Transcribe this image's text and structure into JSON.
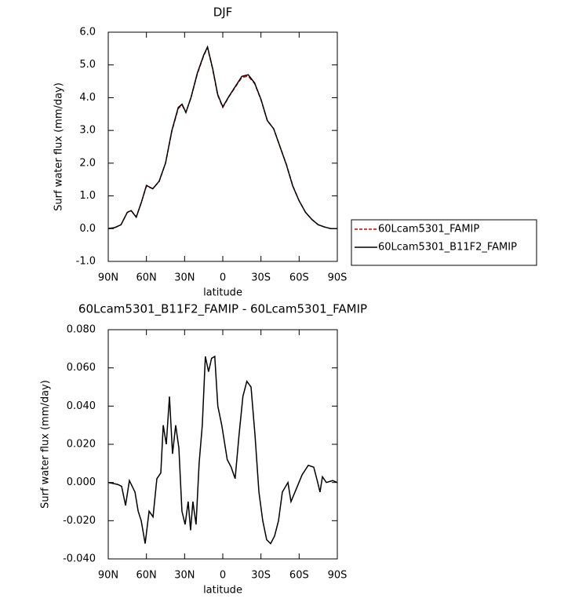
{
  "chart_data": [
    {
      "type": "line",
      "title": "DJF",
      "x_label": "latitude",
      "y_label": "Surf water flux (mm/day)",
      "x": [
        90,
        85,
        80,
        75,
        72,
        68,
        64,
        60,
        55,
        50,
        45,
        40,
        35,
        32,
        29,
        25,
        20,
        15,
        12,
        8,
        4,
        0,
        -5,
        -10,
        -15,
        -20,
        -25,
        -30,
        -35,
        -40,
        -45,
        -50,
        -55,
        -60,
        -65,
        -70,
        -75,
        -80,
        -85,
        -90
      ],
      "series": [
        {
          "name": "60Lcam5301_FAMIP",
          "color": "#cc0000",
          "line_style": "dashed",
          "values": [
            0.0,
            0.03,
            0.12,
            0.5,
            0.55,
            0.36,
            0.8,
            1.3,
            1.22,
            1.44,
            2.0,
            2.98,
            3.67,
            3.78,
            3.55,
            4.0,
            4.73,
            5.28,
            5.53,
            4.88,
            4.08,
            3.7,
            4.04,
            4.33,
            4.62,
            4.66,
            4.43,
            3.94,
            3.3,
            3.05,
            2.5,
            1.96,
            1.31,
            0.85,
            0.5,
            0.28,
            0.12,
            0.05,
            0.0,
            0.0
          ]
        },
        {
          "name": "60Lcam5301_B11F2_FAMIP",
          "color": "#000000",
          "line_style": "solid",
          "values": [
            0.0,
            0.03,
            0.12,
            0.5,
            0.55,
            0.35,
            0.8,
            1.32,
            1.22,
            1.45,
            2.0,
            3.0,
            3.7,
            3.8,
            3.55,
            4.0,
            4.75,
            5.3,
            5.55,
            4.9,
            4.1,
            3.72,
            4.05,
            4.35,
            4.65,
            4.7,
            4.45,
            3.95,
            3.3,
            3.05,
            2.5,
            1.95,
            1.3,
            0.85,
            0.5,
            0.28,
            0.12,
            0.05,
            0.0,
            0.0
          ]
        }
      ],
      "xlim": [
        90,
        -90
      ],
      "xticks": [
        {
          "value": 90,
          "label": "90N"
        },
        {
          "value": 60,
          "label": "60N"
        },
        {
          "value": 30,
          "label": "30N"
        },
        0,
        {
          "value": -30,
          "label": "30S"
        },
        {
          "value": -60,
          "label": "60S"
        },
        {
          "value": -90,
          "label": "90S"
        }
      ],
      "ylim": [
        -1,
        6
      ],
      "yticks": [
        {
          "value": -1,
          "label": "-1.0"
        },
        {
          "value": 0,
          "label": "0.0"
        },
        {
          "value": 1,
          "label": "1.0"
        },
        {
          "value": 2,
          "label": "2.0"
        },
        {
          "value": 3,
          "label": "3.0"
        },
        {
          "value": 4,
          "label": "4.0"
        },
        {
          "value": 5,
          "label": "5.0"
        },
        {
          "value": 6,
          "label": "6.0"
        }
      ],
      "legend": "right"
    },
    {
      "type": "line",
      "title": "60Lcam5301_B11F2_FAMIP - 60Lcam5301_FAMIP",
      "x_label": "latitude",
      "y_label": "Surf water flux (mm/day)",
      "x": [
        90,
        82.6,
        79.5,
        76.4,
        73.4,
        69.0,
        66.5,
        64.1,
        61.0,
        57.9,
        54.8,
        51.8,
        48.7,
        46.8,
        44.4,
        41.9,
        39.5,
        37.0,
        34.5,
        32.1,
        29.6,
        27.2,
        25.3,
        23.5,
        21.0,
        18.6,
        16.1,
        13.7,
        11.2,
        8.8,
        6.3,
        3.9,
        0.8,
        -3.5,
        -6.6,
        -9.7,
        -12.8,
        -15.8,
        -18.9,
        -22.2,
        -25.3,
        -28.4,
        -31.4,
        -34.5,
        -37.6,
        -40.7,
        -43.8,
        -46.8,
        -51.2,
        -53.6,
        -58.0,
        -62.3,
        -67.2,
        -71.5,
        -74.6,
        -76.4,
        -78.3,
        -81.4,
        -86.3,
        -90
      ],
      "series": [
        {
          "name": "60Lcam5301_B11F2_FAMIP - 60Lcam5301_FAMIP",
          "color": "#000000",
          "values": [
            0.0,
            -0.001,
            -0.002,
            -0.012,
            0.001,
            -0.005,
            -0.015,
            -0.02,
            -0.032,
            -0.015,
            -0.018,
            0.002,
            0.005,
            0.03,
            0.02,
            0.045,
            0.015,
            0.03,
            0.018,
            -0.015,
            -0.022,
            -0.01,
            -0.025,
            -0.01,
            -0.022,
            0.01,
            0.03,
            0.066,
            0.058,
            0.065,
            0.066,
            0.04,
            0.03,
            0.012,
            0.008,
            0.002,
            0.025,
            0.045,
            0.053,
            0.05,
            0.025,
            -0.005,
            -0.02,
            -0.03,
            -0.032,
            -0.028,
            -0.02,
            -0.005,
            0.0,
            -0.01,
            -0.003,
            0.004,
            0.009,
            0.008,
            0.0,
            -0.005,
            0.003,
            0.0,
            0.001,
            0.0
          ]
        }
      ],
      "xlim": [
        90,
        -90
      ],
      "xticks": [
        {
          "value": 90,
          "label": "90N"
        },
        {
          "value": 60,
          "label": "60N"
        },
        {
          "value": 30,
          "label": "30N"
        },
        0,
        {
          "value": -30,
          "label": "30S"
        },
        {
          "value": -60,
          "label": "60S"
        },
        {
          "value": -90,
          "label": "90S"
        }
      ],
      "ylim": [
        -0.04,
        0.08
      ],
      "yticks": [
        {
          "value": -0.04,
          "label": "-0.040"
        },
        {
          "value": -0.02,
          "label": "-0.020"
        },
        {
          "value": 0,
          "label": "0.000"
        },
        {
          "value": 0.02,
          "label": "0.020"
        },
        {
          "value": 0.04,
          "label": "0.040"
        },
        {
          "value": 0.06,
          "label": "0.060"
        },
        {
          "value": 0.08,
          "label": "0.080"
        }
      ]
    }
  ]
}
